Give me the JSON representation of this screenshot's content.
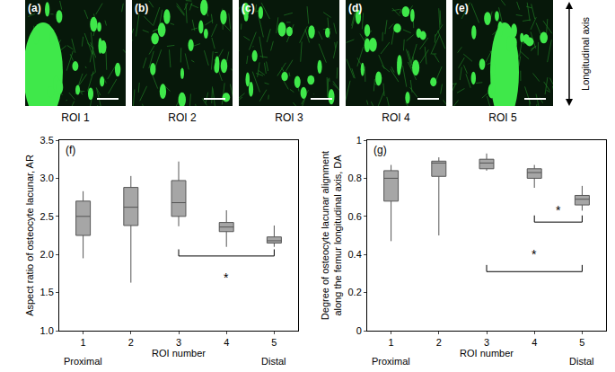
{
  "panels": [
    {
      "label": "(a)",
      "caption": "ROI 1"
    },
    {
      "label": "(b)",
      "caption": "ROI 2"
    },
    {
      "label": "(c)",
      "caption": "ROI 3"
    },
    {
      "label": "(d)",
      "caption": "ROI 4"
    },
    {
      "label": "(e)",
      "caption": "ROI 5"
    }
  ],
  "axis_arrow": "Longitudinal axis",
  "chart_data": [
    {
      "type": "box",
      "title": "(f)",
      "x_label": "ROI number",
      "y_label": "Aspect ratio of osteocyte lacunar, AR",
      "x": [
        1,
        2,
        3,
        4,
        5
      ],
      "xlim": [
        0.5,
        5.5
      ],
      "xticks": [
        1,
        2,
        3,
        4,
        5
      ],
      "ylim": [
        1.0,
        3.5
      ],
      "yticks": [
        {
          "value": 1,
          "label": "1.0"
        },
        {
          "value": 1.5,
          "label": "1.5"
        },
        {
          "value": 2,
          "label": "2.0"
        },
        {
          "value": 2.5,
          "label": "2.5"
        },
        {
          "value": 3,
          "label": "3.0"
        },
        {
          "value": 3.5,
          "label": "3.5"
        }
      ],
      "color": "#a6a6a6",
      "grid": false,
      "lower_whisker": [
        1.95,
        1.63,
        2.37,
        2.1,
        2.1
      ],
      "q1": [
        2.25,
        2.38,
        2.5,
        2.3,
        2.15
      ],
      "median": [
        2.5,
        2.62,
        2.68,
        2.36,
        2.18
      ],
      "q3": [
        2.7,
        2.88,
        2.97,
        2.42,
        2.23
      ],
      "upper_whisker": [
        2.83,
        3.03,
        3.22,
        2.58,
        2.38
      ],
      "annotations": [
        {
          "text": "Proximal",
          "x": 1
        },
        {
          "text": "Distal",
          "x": 5
        }
      ],
      "significance": [
        {
          "from": 3,
          "to": 5,
          "y": 1.98,
          "text": "*",
          "text_y": 1.7
        }
      ]
    },
    {
      "type": "box",
      "title": "(g)",
      "x_label": "ROI number",
      "y_label": "Degree of osteocyte lacunar alignment along the femur longitudinal axis, DA",
      "x": [
        1,
        2,
        3,
        4,
        5
      ],
      "xlim": [
        0.5,
        5.5
      ],
      "xticks": [
        1,
        2,
        3,
        4,
        5
      ],
      "ylim": [
        0,
        1
      ],
      "yticks": [
        0,
        0.2,
        0.4,
        0.6,
        0.8,
        1
      ],
      "color": "#a6a6a6",
      "grid": false,
      "lower_whisker": [
        0.47,
        0.5,
        0.84,
        0.75,
        0.63
      ],
      "q1": [
        0.68,
        0.81,
        0.85,
        0.8,
        0.66
      ],
      "median": [
        0.8,
        0.88,
        0.88,
        0.83,
        0.69
      ],
      "q3": [
        0.84,
        0.89,
        0.9,
        0.85,
        0.71
      ],
      "upper_whisker": [
        0.87,
        0.91,
        0.93,
        0.87,
        0.76
      ],
      "annotations": [
        {
          "text": "Proximal",
          "x": 1
        },
        {
          "text": "Distal",
          "x": 5
        }
      ],
      "significance": [
        {
          "from": 3,
          "to": 5,
          "y": 0.31,
          "text": "*",
          "text_y": 0.4
        },
        {
          "from": 4,
          "to": 5,
          "y": 0.57,
          "text": "*",
          "text_y": 0.63
        }
      ]
    }
  ]
}
